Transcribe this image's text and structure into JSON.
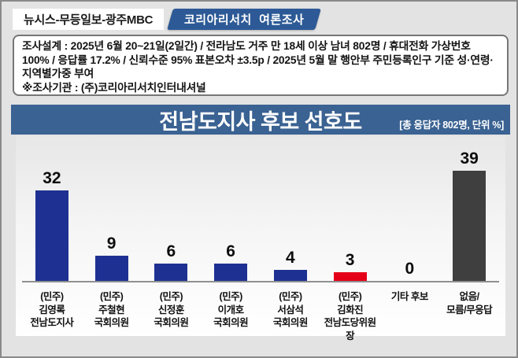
{
  "header": {
    "source": "뉴시스-무등일보-광주MBC",
    "badge": "코리아리서치  여론조사"
  },
  "survey_info": {
    "design": "조사설계 : 2025년 6월 20~21일(2일간) / 전라남도 거주 만 18세 이상 남녀 802명 / 휴대전화 가상번호 100% / 응답률 17.2% / 신뢰수준 95% 표본오차 ±3.5p / 2025년 5월 말 행안부 주민등록인구 기준 성·연령·지역별가중 부여",
    "agency": "※조사기관 : (주)코리아리서치인터내셔널"
  },
  "title_bar": {
    "title": "전남도지사 후보 선호도",
    "note": "[총 응답자 802명, 단위 %]"
  },
  "chart_data": {
    "type": "bar",
    "title": "전남도지사 후보 선호도",
    "unit": "%",
    "total_respondents": "802명",
    "ylim": [
      0,
      45
    ],
    "grid": false,
    "legend": false,
    "categories": [
      "(민주) 김영록 전남도지사",
      "(민주) 주철현 국회의원",
      "(민주) 신정훈 국회의원",
      "(민주) 이개호 국회의원",
      "(민주) 서삼석 국회의원",
      "(민주) 김화진 전남도당위원장",
      "기타 후보",
      "없음/모름/무응답"
    ],
    "values": [
      32,
      9,
      6,
      6,
      4,
      3,
      0,
      39
    ],
    "colors": {
      "democratic_navy": "#1e3192",
      "highlight_red": "#e50019",
      "no_answer_gray": "#3f3f3f",
      "title_bar_blue": "#3a6292",
      "badge_blue": "#2d5a96"
    },
    "bars": [
      {
        "value": 32,
        "color": "#1e3192",
        "label_lines": [
          "(민주)",
          "김영록",
          "전남도지사"
        ]
      },
      {
        "value": 9,
        "color": "#1e3192",
        "label_lines": [
          "(민주)",
          "주철현",
          "국회의원"
        ]
      },
      {
        "value": 6,
        "color": "#1e3192",
        "label_lines": [
          "(민주)",
          "신정훈",
          "국회의원"
        ]
      },
      {
        "value": 6,
        "color": "#1e3192",
        "label_lines": [
          "(민주)",
          "이개호",
          "국회의원"
        ]
      },
      {
        "value": 4,
        "color": "#1e3192",
        "label_lines": [
          "(민주)",
          "서삼석",
          "국회의원"
        ]
      },
      {
        "value": 3,
        "color": "#e50019",
        "label_lines": [
          "(민주)",
          "김화진",
          "전남도당위원장"
        ]
      },
      {
        "value": 0,
        "color": null,
        "label_lines": [
          "기타 후보"
        ]
      },
      {
        "value": 39,
        "color": "#3f3f3f",
        "label_lines": [
          "없음/",
          "모름/무응답"
        ]
      }
    ]
  }
}
